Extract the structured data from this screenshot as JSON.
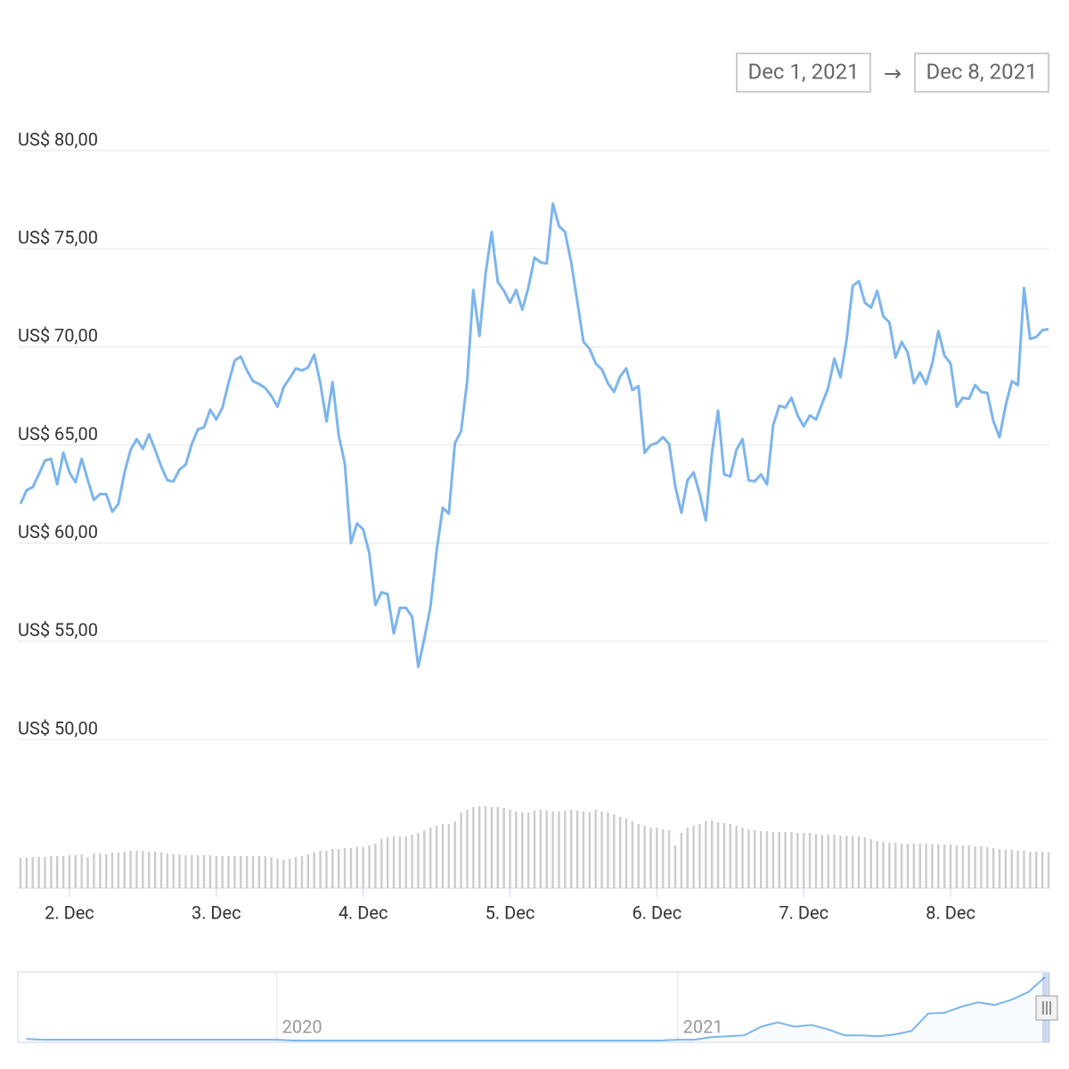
{
  "date_range": {
    "from": "Dec 1, 2021",
    "separator": "→",
    "to": "Dec 8, 2021"
  },
  "chart_data": [
    {
      "type": "line",
      "color": "#7cb5ec",
      "categories": [
        null,
        null,
        null,
        null,
        null,
        null,
        null,
        null,
        "2. Dec",
        null,
        null,
        null,
        null,
        null,
        null,
        null,
        null,
        null,
        null,
        null,
        null,
        null,
        null,
        null,
        null,
        null,
        null,
        null,
        null,
        null,
        null,
        null,
        "3. Dec",
        null,
        null,
        null,
        null,
        null,
        null,
        null,
        null,
        null,
        null,
        null,
        null,
        null,
        null,
        null,
        null,
        null,
        null,
        null,
        null,
        null,
        null,
        null,
        "4. Dec",
        null,
        null,
        null,
        null,
        null,
        null,
        null,
        null,
        null,
        null,
        null,
        null,
        null,
        null,
        null,
        null,
        null,
        null,
        null,
        null,
        null,
        null,
        null,
        "5. Dec",
        null,
        null,
        null,
        null,
        null,
        null,
        null,
        null,
        null,
        null,
        null,
        null,
        null,
        null,
        null,
        null,
        null,
        null,
        null,
        null,
        null,
        null,
        null,
        "6. Dec",
        null,
        null,
        null,
        null,
        null,
        null,
        null,
        null,
        null,
        null,
        null,
        null,
        null,
        null,
        null,
        null,
        null,
        null,
        null,
        null,
        null,
        null,
        null,
        "7. Dec",
        null,
        null,
        null,
        null,
        null,
        null,
        null,
        null,
        null,
        null,
        null,
        null,
        null,
        null,
        null,
        null,
        null,
        null,
        null,
        null,
        null,
        null,
        null,
        "8. Dec",
        null,
        null,
        null,
        null,
        null,
        null,
        null,
        null,
        null,
        null,
        null,
        null,
        null,
        null,
        null,
        null
      ],
      "values": [
        62.0,
        62.7,
        62.85,
        63.5,
        64.2,
        64.3,
        63.0,
        64.6,
        63.6,
        63.1,
        64.3,
        63.2,
        62.2,
        62.5,
        62.5,
        61.6,
        62.0,
        63.6,
        64.75,
        65.3,
        64.8,
        65.55,
        64.75,
        63.9,
        63.2,
        63.15,
        63.75,
        64.0,
        65.05,
        65.8,
        65.9,
        66.8,
        66.3,
        66.9,
        68.15,
        69.3,
        69.5,
        68.8,
        68.25,
        68.1,
        67.9,
        67.5,
        66.95,
        67.95,
        68.4,
        68.9,
        68.8,
        68.95,
        69.6,
        68.15,
        66.2,
        68.2,
        65.5,
        64.05,
        60.0,
        61.0,
        60.7,
        59.5,
        56.85,
        57.5,
        57.4,
        55.4,
        56.7,
        56.7,
        56.25,
        53.7,
        55.15,
        56.75,
        59.6,
        61.8,
        61.5,
        65.1,
        65.7,
        68.25,
        72.9,
        70.55,
        73.7,
        75.85,
        73.3,
        72.85,
        72.25,
        72.9,
        71.9,
        73.0,
        74.55,
        74.3,
        74.25,
        77.3,
        76.15,
        75.85,
        74.3,
        72.3,
        70.25,
        69.9,
        69.15,
        68.85,
        68.15,
        67.7,
        68.5,
        68.9,
        67.8,
        68.0,
        64.6,
        65.0,
        65.1,
        65.4,
        65.05,
        62.9,
        61.55,
        63.2,
        63.6,
        62.5,
        61.15,
        64.6,
        66.75,
        63.5,
        63.4,
        64.75,
        65.3,
        63.2,
        63.15,
        63.5,
        63.0,
        66.0,
        67.0,
        66.9,
        67.4,
        66.5,
        65.95,
        66.5,
        66.3,
        67.1,
        67.9,
        69.4,
        68.45,
        70.35,
        73.1,
        73.35,
        72.25,
        72.0,
        72.85,
        71.55,
        71.25,
        69.45,
        70.25,
        69.7,
        68.15,
        68.7,
        68.1,
        69.15,
        70.8,
        69.55,
        69.15,
        66.95,
        67.4,
        67.35,
        68.05,
        67.7,
        67.65,
        66.2,
        65.4,
        67.0,
        68.25,
        68.05,
        73.0,
        70.4,
        70.5,
        70.85,
        70.9
      ],
      "ylim": [
        50,
        80
      ],
      "yticks": [
        {
          "value": 50,
          "label": "US$ 50,00"
        },
        {
          "value": 55,
          "label": "US$ 55,00"
        },
        {
          "value": 60,
          "label": "US$ 60,00"
        },
        {
          "value": 65,
          "label": "US$ 65,00"
        },
        {
          "value": 70,
          "label": "US$ 70,00"
        },
        {
          "value": 75,
          "label": "US$ 75,00"
        },
        {
          "value": 80,
          "label": "US$ 80,00"
        }
      ],
      "grid": true
    },
    {
      "type": "bar",
      "color": "#cccccc",
      "ylim": [
        0,
        100
      ],
      "values": [
        34,
        34,
        35,
        35,
        35,
        36,
        36,
        36,
        37,
        37,
        38,
        35,
        39,
        39,
        38,
        40,
        40,
        41,
        42,
        42,
        42,
        41,
        41,
        40,
        39,
        38,
        38,
        37,
        37,
        37,
        37,
        37,
        36,
        36,
        36,
        36,
        36,
        36,
        36,
        36,
        36,
        35,
        33,
        32,
        33,
        35,
        36,
        38,
        40,
        42,
        42,
        44,
        44,
        45,
        45,
        46,
        46,
        48,
        50,
        55,
        57,
        58,
        58,
        58,
        60,
        62,
        65,
        68,
        70,
        72,
        72,
        75,
        85,
        88,
        91,
        92,
        92,
        91,
        91,
        90,
        88,
        86,
        85,
        85,
        87,
        88,
        87,
        86,
        86,
        87,
        88,
        87,
        86,
        85,
        88,
        86,
        85,
        83,
        80,
        78,
        75,
        72,
        70,
        68,
        68,
        66,
        65,
        48,
        62,
        68,
        70,
        72,
        75,
        76,
        74,
        73,
        72,
        70,
        68,
        66,
        65,
        64,
        64,
        63,
        63,
        63,
        63,
        62,
        62,
        62,
        61,
        60,
        60,
        60,
        59,
        59,
        58,
        58,
        57,
        55,
        53,
        52,
        51,
        51,
        50,
        50,
        50,
        50,
        50,
        49,
        49,
        49,
        49,
        48,
        48,
        48,
        47,
        47,
        46,
        45,
        44,
        43,
        43,
        42,
        42,
        41,
        41,
        41,
        40
      ]
    },
    {
      "type": "area",
      "color": "#7cb5ec",
      "ylim": [
        0,
        80
      ],
      "categories": [
        null,
        null,
        null,
        null,
        null,
        null,
        null,
        null,
        null,
        null,
        null,
        null,
        null,
        null,
        null,
        "2020",
        null,
        null,
        null,
        null,
        null,
        null,
        null,
        null,
        null,
        null,
        null,
        null,
        null,
        null,
        null,
        null,
        null,
        null,
        null,
        null,
        null,
        null,
        null,
        "2021",
        null,
        null,
        null,
        null,
        null,
        null,
        null,
        null,
        null,
        null,
        null,
        null,
        null,
        null,
        null,
        null,
        null,
        null,
        null,
        null,
        null,
        null
      ],
      "values": [
        4,
        3,
        3,
        3,
        3,
        3,
        3,
        3,
        3,
        3,
        3,
        3,
        3,
        3,
        3,
        3,
        2,
        2,
        2,
        2,
        2,
        2,
        2,
        2,
        2,
        2,
        2,
        2,
        2,
        2,
        2,
        2,
        2,
        2,
        2,
        2,
        2,
        2,
        2,
        3,
        3,
        6,
        7,
        8,
        18,
        23,
        18,
        20,
        15,
        8,
        8,
        7,
        9,
        13,
        33,
        34,
        41,
        46,
        43,
        49,
        58,
        75
      ]
    }
  ]
}
